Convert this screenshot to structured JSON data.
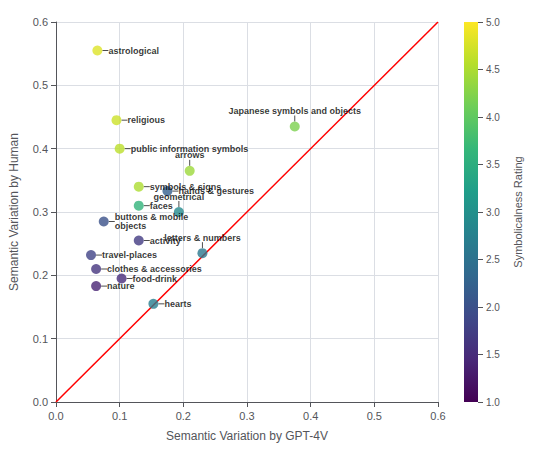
{
  "chart_data": {
    "type": "scatter",
    "xlabel": "Semantic Variation by GPT-4V",
    "ylabel": "Semantic Variation by Human",
    "xlim": [
      0.0,
      0.6
    ],
    "ylim": [
      0.0,
      0.6
    ],
    "xticks": [
      {
        "value": 0.0,
        "label": "0.0"
      },
      0.1,
      0.2,
      0.3,
      0.4,
      0.5,
      0.6
    ],
    "yticks": [
      {
        "value": 0.0,
        "label": "0.0"
      },
      0.1,
      0.2,
      0.3,
      0.4,
      0.5,
      0.6
    ],
    "grid": true,
    "points": [
      {
        "label": "astrological",
        "x": 0.065,
        "y": 0.555,
        "symbolicalness": 4.8
      },
      {
        "label": "religious",
        "x": 0.095,
        "y": 0.445,
        "symbolicalness": 4.7
      },
      {
        "label": "public information symbols",
        "x": 0.1,
        "y": 0.4,
        "symbolicalness": 4.6
      },
      {
        "label": "Japanese symbols and objects",
        "x": 0.375,
        "y": 0.435,
        "symbolicalness": 4.2
      },
      {
        "label": "arrows",
        "x": 0.21,
        "y": 0.365,
        "symbolicalness": 4.4
      },
      {
        "label": "symbols & signs",
        "x": 0.13,
        "y": 0.34,
        "symbolicalness": 4.5
      },
      {
        "label": "hands & gestures",
        "x": 0.175,
        "y": 0.333,
        "symbolicalness": 2.2
      },
      {
        "label": "faces",
        "x": 0.13,
        "y": 0.31,
        "symbolicalness": 3.6
      },
      {
        "label": "geometrical",
        "x": 0.193,
        "y": 0.3,
        "symbolicalness": 2.9
      },
      {
        "label": "buttons & mobile\nobjects",
        "x": 0.075,
        "y": 0.285,
        "symbolicalness": 2.0
      },
      {
        "label": "activity",
        "x": 0.13,
        "y": 0.255,
        "symbolicalness": 1.7
      },
      {
        "label": "letters & numbers",
        "x": 0.23,
        "y": 0.235,
        "symbolicalness": 2.6
      },
      {
        "label": "travel-places",
        "x": 0.055,
        "y": 0.232,
        "symbolicalness": 1.8
      },
      {
        "label": "clothes & accessories",
        "x": 0.063,
        "y": 0.21,
        "symbolicalness": 1.6
      },
      {
        "label": "food-drink",
        "x": 0.103,
        "y": 0.195,
        "symbolicalness": 1.5
      },
      {
        "label": "nature",
        "x": 0.063,
        "y": 0.183,
        "symbolicalness": 1.4
      },
      {
        "label": "hearts",
        "x": 0.153,
        "y": 0.155,
        "symbolicalness": 2.7
      }
    ],
    "diagonal": {
      "type": "line",
      "color": "red",
      "x": [
        0.0,
        0.6
      ],
      "values": [
        0.0,
        0.6
      ]
    },
    "colorbar": {
      "label": "Symbolicalness Rating",
      "min": 1.0,
      "max": 5.0,
      "ticks": [
        {
          "value": 1.0,
          "label": "1.0"
        },
        1.5,
        {
          "value": 2.0,
          "label": "2.0"
        },
        2.5,
        {
          "value": 3.0,
          "label": "3.0"
        },
        3.5,
        {
          "value": 4.0,
          "label": "4.0"
        },
        4.5,
        {
          "value": 5.0,
          "label": "5.0"
        }
      ]
    }
  }
}
